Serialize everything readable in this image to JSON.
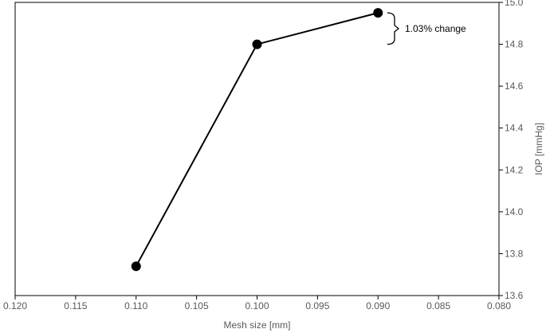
{
  "chart_data": {
    "type": "line",
    "title": "",
    "xlabel": "Mesh size [mm]",
    "ylabel": "IOP [mmHg]",
    "x_axis": {
      "min": 0.12,
      "max": 0.08,
      "reversed": true,
      "ticks": [
        "0.120",
        "0.115",
        "0.110",
        "0.105",
        "0.100",
        "0.095",
        "0.090",
        "0.085",
        "0.080"
      ]
    },
    "y_axis": {
      "min": 13.6,
      "max": 15.0,
      "position": "right",
      "ticks": [
        "13.6",
        "13.8",
        "14.0",
        "14.2",
        "14.4",
        "14.6",
        "14.8",
        "15.0"
      ]
    },
    "grid": false,
    "legend": "none",
    "series": [
      {
        "x": [
          0.11,
          0.1,
          0.09
        ],
        "y": [
          13.74,
          14.8,
          14.95
        ],
        "color": "#000000",
        "marker": "circle"
      }
    ],
    "annotation": {
      "text": "1.03% change",
      "y_from": 14.8,
      "y_to": 14.95
    }
  }
}
